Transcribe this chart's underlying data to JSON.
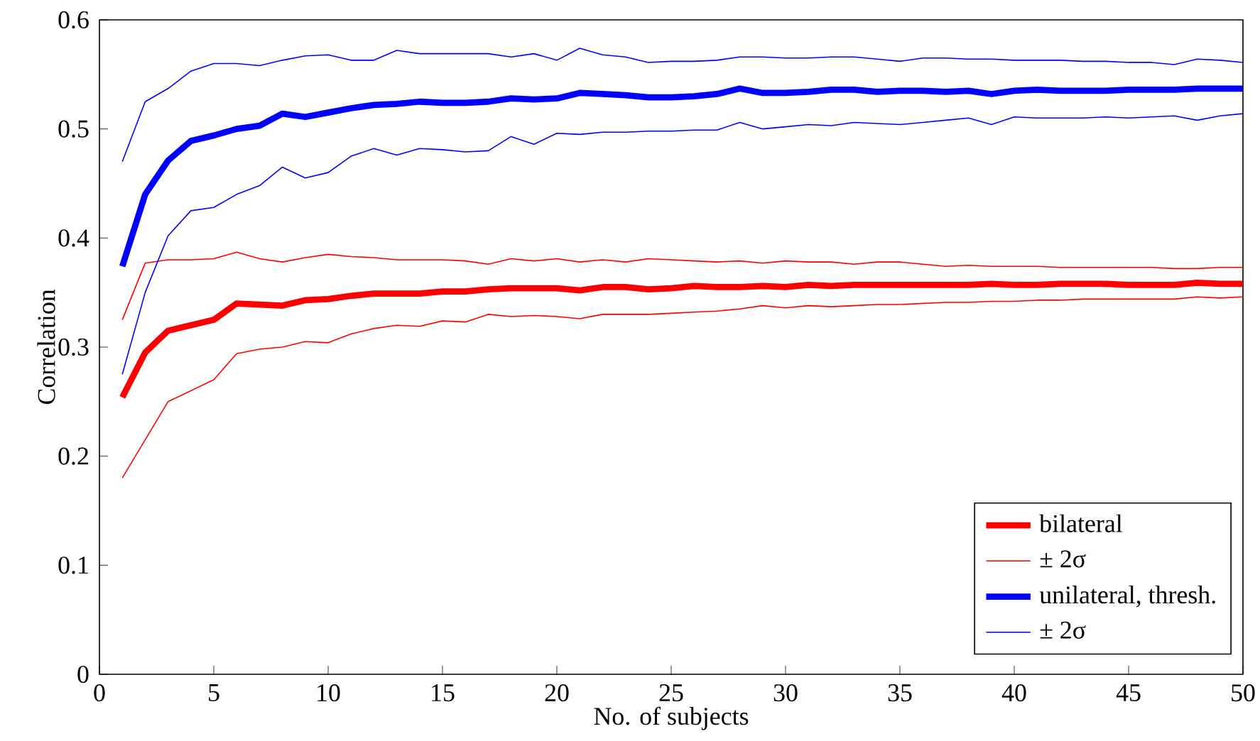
{
  "chart_data": {
    "type": "line",
    "xlabel": "No. of subjects",
    "ylabel": "Correlation",
    "x": [
      1,
      2,
      3,
      4,
      5,
      6,
      7,
      8,
      9,
      10,
      11,
      12,
      13,
      14,
      15,
      16,
      17,
      18,
      19,
      20,
      21,
      22,
      23,
      24,
      25,
      26,
      27,
      28,
      29,
      30,
      31,
      32,
      33,
      34,
      35,
      36,
      37,
      38,
      39,
      40,
      41,
      42,
      43,
      44,
      45,
      46,
      47,
      48,
      49,
      50
    ],
    "xlim": [
      0,
      50
    ],
    "ylim": [
      0,
      0.6
    ],
    "xticks": [
      0,
      5,
      10,
      15,
      20,
      25,
      30,
      35,
      40,
      45,
      50
    ],
    "yticks": [
      0,
      0.1,
      0.2,
      0.3,
      0.4,
      0.5,
      0.6
    ],
    "legend": "bottom right",
    "grid": false,
    "marker": "none",
    "line_style": "solid",
    "series": [
      {
        "name": "bilateral",
        "color": "#ff0000",
        "values": [
          0.254,
          0.295,
          0.315,
          0.32,
          0.325,
          0.34,
          0.339,
          0.338,
          0.343,
          0.344,
          0.347,
          0.349,
          0.349,
          0.349,
          0.351,
          0.351,
          0.353,
          0.354,
          0.354,
          0.354,
          0.352,
          0.355,
          0.355,
          0.353,
          0.354,
          0.356,
          0.355,
          0.355,
          0.356,
          0.355,
          0.357,
          0.356,
          0.357,
          0.357,
          0.357,
          0.357,
          0.357,
          0.357,
          0.358,
          0.357,
          0.357,
          0.358,
          0.358,
          0.358,
          0.357,
          0.357,
          0.357,
          0.359,
          0.358,
          0.358
        ]
      },
      {
        "name": "± 2σ",
        "color": "#ff0000",
        "values": [
          0.325,
          0.377,
          0.38,
          0.38,
          0.381,
          0.387,
          0.381,
          0.378,
          0.382,
          0.385,
          0.383,
          0.382,
          0.38,
          0.38,
          0.38,
          0.379,
          0.376,
          0.381,
          0.379,
          0.381,
          0.378,
          0.38,
          0.378,
          0.381,
          0.38,
          0.379,
          0.378,
          0.379,
          0.377,
          0.379,
          0.378,
          0.378,
          0.376,
          0.378,
          0.378,
          0.376,
          0.374,
          0.375,
          0.374,
          0.374,
          0.374,
          0.373,
          0.373,
          0.373,
          0.373,
          0.373,
          0.372,
          0.372,
          0.373,
          0.373
        ]
      },
      {
        "color": "#ff0000",
        "values": [
          0.18,
          0.215,
          0.25,
          0.26,
          0.27,
          0.294,
          0.298,
          0.3,
          0.305,
          0.304,
          0.312,
          0.317,
          0.32,
          0.319,
          0.324,
          0.323,
          0.33,
          0.328,
          0.329,
          0.328,
          0.326,
          0.33,
          0.33,
          0.33,
          0.331,
          0.332,
          0.333,
          0.335,
          0.338,
          0.336,
          0.338,
          0.337,
          0.338,
          0.339,
          0.339,
          0.34,
          0.341,
          0.341,
          0.342,
          0.342,
          0.343,
          0.343,
          0.344,
          0.344,
          0.344,
          0.344,
          0.344,
          0.346,
          0.345,
          0.346
        ]
      },
      {
        "name": "unilateral, thresh.",
        "color": "#0000ff",
        "values": [
          0.374,
          0.44,
          0.471,
          0.489,
          0.494,
          0.5,
          0.503,
          0.514,
          0.511,
          0.515,
          0.519,
          0.522,
          0.523,
          0.525,
          0.524,
          0.524,
          0.525,
          0.528,
          0.527,
          0.528,
          0.533,
          0.532,
          0.531,
          0.529,
          0.529,
          0.53,
          0.532,
          0.537,
          0.533,
          0.533,
          0.534,
          0.536,
          0.536,
          0.534,
          0.535,
          0.535,
          0.534,
          0.535,
          0.532,
          0.535,
          0.536,
          0.535,
          0.535,
          0.535,
          0.536,
          0.536,
          0.536,
          0.537,
          0.537,
          0.537
        ]
      },
      {
        "name": "± 2σ",
        "color": "#0000ff",
        "values": [
          0.47,
          0.525,
          0.537,
          0.553,
          0.56,
          0.56,
          0.558,
          0.563,
          0.567,
          0.568,
          0.563,
          0.563,
          0.572,
          0.569,
          0.569,
          0.569,
          0.569,
          0.566,
          0.569,
          0.563,
          0.574,
          0.568,
          0.566,
          0.561,
          0.562,
          0.562,
          0.563,
          0.566,
          0.566,
          0.565,
          0.565,
          0.566,
          0.566,
          0.564,
          0.562,
          0.565,
          0.565,
          0.564,
          0.564,
          0.563,
          0.563,
          0.563,
          0.562,
          0.562,
          0.561,
          0.561,
          0.559,
          0.564,
          0.563,
          0.561
        ]
      },
      {
        "color": "#0000ff",
        "values": [
          0.275,
          0.35,
          0.402,
          0.425,
          0.428,
          0.44,
          0.448,
          0.465,
          0.455,
          0.46,
          0.475,
          0.482,
          0.476,
          0.482,
          0.481,
          0.479,
          0.48,
          0.493,
          0.486,
          0.496,
          0.495,
          0.497,
          0.497,
          0.498,
          0.498,
          0.499,
          0.499,
          0.506,
          0.5,
          0.502,
          0.504,
          0.503,
          0.506,
          0.505,
          0.504,
          0.506,
          0.508,
          0.51,
          0.504,
          0.511,
          0.51,
          0.51,
          0.51,
          0.511,
          0.51,
          0.511,
          0.512,
          0.508,
          0.512,
          0.514
        ]
      }
    ]
  }
}
